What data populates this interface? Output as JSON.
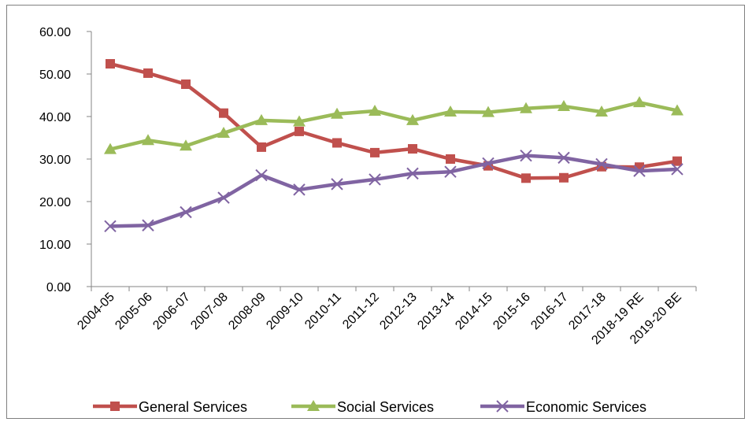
{
  "chart_data": {
    "type": "line",
    "title": "",
    "xlabel": "",
    "ylabel": "",
    "categories": [
      "2004-05",
      "2005-06",
      "2006-07",
      "2007-08",
      "2008-09",
      "2009-10",
      "2010-11",
      "2011-12",
      "2012-13",
      "2013-14",
      "2014-15",
      "2015-16",
      "2016-17",
      "2017-18",
      "2018-19 RE",
      "2019-20 BE"
    ],
    "y_ticks": [
      "0.00",
      "10.00",
      "20.00",
      "30.00",
      "40.00",
      "50.00",
      "60.00"
    ],
    "ylim": [
      0,
      60
    ],
    "grid": false,
    "legend_position": "bottom",
    "series": [
      {
        "name": "General Services",
        "color": "#c0504d",
        "marker": "square",
        "values": [
          52.4,
          50.2,
          47.6,
          40.8,
          32.8,
          36.5,
          33.8,
          31.5,
          32.4,
          30.0,
          28.4,
          25.5,
          25.6,
          28.2,
          28.1,
          29.5
        ]
      },
      {
        "name": "Social Services",
        "color": "#9bbb59",
        "marker": "triangle",
        "values": [
          32.3,
          34.4,
          33.1,
          36.1,
          39.1,
          38.8,
          40.6,
          41.3,
          39.1,
          41.1,
          41.0,
          41.9,
          42.4,
          41.1,
          43.3,
          41.4
        ]
      },
      {
        "name": "Economic Services",
        "color": "#8064a2",
        "marker": "x",
        "values": [
          14.2,
          14.4,
          17.5,
          20.9,
          26.2,
          22.8,
          24.1,
          25.2,
          26.6,
          27.0,
          29.0,
          30.8,
          30.3,
          28.8,
          27.2,
          27.6
        ]
      }
    ]
  }
}
